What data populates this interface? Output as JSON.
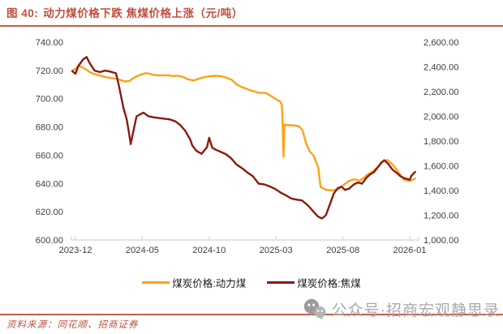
{
  "title": {
    "prefix": "图 40:",
    "text": "动力煤价格下跌 焦煤价格上涨（元/吨）"
  },
  "source": {
    "label": "资料来源：同花顺、招商证券"
  },
  "watermark": {
    "text": "公众号·招商宏观静思录"
  },
  "colors": {
    "accent": "#c14e3e",
    "rule": "#c4604a",
    "axis_text": "#3f3f3f",
    "axis_line": "#d9d9d9",
    "watermark_gray": "#a9a9a9"
  },
  "chart_data": {
    "type": "line",
    "title": "动力煤价格下跌 焦煤价格上涨（元/吨）",
    "unit": "元/吨",
    "grid": false,
    "legend_position": "bottom",
    "x_tick_labels": [
      "2023-12",
      "2024-05",
      "2024-10",
      "2025-03",
      "2025-08",
      "2026-01"
    ],
    "left_axis": {
      "min": 600,
      "max": 740,
      "tick_labels": [
        "740.00",
        "720.00",
        "700.00",
        "680.00",
        "660.00",
        "640.00",
        "620.00",
        "600.00"
      ]
    },
    "right_axis": {
      "min": 1000,
      "max": 2600,
      "tick_labels": [
        "2,600.00",
        "2,400.00",
        "2,200.00",
        "2,000.00",
        "1,800.00",
        "1,600.00",
        "1,400.00",
        "1,200.00",
        "1,000.00"
      ]
    },
    "series": [
      {
        "name": "煤炭价格:动力煤",
        "axis": "left",
        "color": "#FFA018",
        "points": [
          [
            "2023-11-24",
            720
          ],
          [
            "2023-12-01",
            721
          ],
          [
            "2023-12-08",
            723.5
          ],
          [
            "2023-12-15",
            722.5
          ],
          [
            "2023-12-26",
            720.5
          ],
          [
            "2024-01-02",
            719
          ],
          [
            "2024-01-12",
            717.5
          ],
          [
            "2024-01-24",
            716.5
          ],
          [
            "2024-02-05",
            715.5
          ],
          [
            "2024-02-18",
            714.8
          ],
          [
            "2024-03-01",
            714.2
          ],
          [
            "2024-03-12",
            713.2
          ],
          [
            "2024-03-22",
            712.2
          ],
          [
            "2024-04-02",
            712.5
          ],
          [
            "2024-04-14",
            715.2
          ],
          [
            "2024-04-26",
            716.8
          ],
          [
            "2024-05-08",
            718
          ],
          [
            "2024-05-16",
            717.8
          ],
          [
            "2024-05-24",
            717
          ],
          [
            "2024-06-04",
            716.6
          ],
          [
            "2024-06-16",
            716.4
          ],
          [
            "2024-06-28",
            716.6
          ],
          [
            "2024-07-10",
            716
          ],
          [
            "2024-07-22",
            716.2
          ],
          [
            "2024-08-03",
            715.4
          ],
          [
            "2024-08-14",
            713.6
          ],
          [
            "2024-08-27",
            712.9
          ],
          [
            "2024-09-09",
            714.3
          ],
          [
            "2024-09-20",
            715.2
          ],
          [
            "2024-10-03",
            715.9
          ],
          [
            "2024-10-16",
            716.2
          ],
          [
            "2024-10-28",
            715.9
          ],
          [
            "2024-11-09",
            714.9
          ],
          [
            "2024-11-21",
            713.5
          ],
          [
            "2024-12-03",
            710
          ],
          [
            "2024-12-16",
            708
          ],
          [
            "2025-01-03",
            706
          ],
          [
            "2025-01-22",
            704.2
          ],
          [
            "2025-02-08",
            704
          ],
          [
            "2025-02-18",
            702.3
          ],
          [
            "2025-02-28",
            700.2
          ],
          [
            "2025-03-10",
            698
          ],
          [
            "2025-03-14",
            696
          ],
          [
            "2025-03-16",
            682
          ],
          [
            "2025-03-18",
            659
          ],
          [
            "2025-03-20",
            681.5
          ],
          [
            "2025-04-05",
            681.2
          ],
          [
            "2025-04-22",
            680.6
          ],
          [
            "2025-04-30",
            678
          ],
          [
            "2025-05-09",
            668
          ],
          [
            "2025-05-17",
            662.5
          ],
          [
            "2025-05-26",
            659.5
          ],
          [
            "2025-06-01",
            655
          ],
          [
            "2025-06-06",
            651
          ],
          [
            "2025-06-11",
            637.5
          ],
          [
            "2025-06-22",
            635.6
          ],
          [
            "2025-07-05",
            635
          ],
          [
            "2025-07-20",
            635.8
          ],
          [
            "2025-08-02",
            638.8
          ],
          [
            "2025-08-15",
            641.8
          ],
          [
            "2025-08-27",
            643
          ],
          [
            "2025-09-09",
            641.9
          ],
          [
            "2025-09-18",
            644
          ],
          [
            "2025-09-27",
            646.4
          ],
          [
            "2025-10-06",
            648
          ],
          [
            "2025-10-15",
            650.5
          ],
          [
            "2025-10-24",
            653
          ],
          [
            "2025-11-02",
            655.8
          ],
          [
            "2025-11-11",
            656.6
          ],
          [
            "2025-11-21",
            654
          ],
          [
            "2025-11-30",
            650.5
          ],
          [
            "2025-12-09",
            646.5
          ],
          [
            "2025-12-18",
            642.6
          ],
          [
            "2025-12-30",
            641.8
          ],
          [
            "2026-01-06",
            642.3
          ],
          [
            "2026-01-13",
            643.5
          ]
        ]
      },
      {
        "name": "煤炭价格:焦煤",
        "axis": "right",
        "color": "#8B1A0E",
        "points": [
          [
            "2023-11-24",
            2365
          ],
          [
            "2023-12-01",
            2345
          ],
          [
            "2023-12-08",
            2410
          ],
          [
            "2023-12-18",
            2460
          ],
          [
            "2023-12-26",
            2480
          ],
          [
            "2024-01-03",
            2430
          ],
          [
            "2024-01-14",
            2370
          ],
          [
            "2024-01-26",
            2358
          ],
          [
            "2024-02-07",
            2370
          ],
          [
            "2024-02-19",
            2362
          ],
          [
            "2024-03-02",
            2348
          ],
          [
            "2024-03-09",
            2240
          ],
          [
            "2024-03-14",
            2150
          ],
          [
            "2024-03-19",
            2065
          ],
          [
            "2024-03-26",
            1975
          ],
          [
            "2024-04-01",
            1870
          ],
          [
            "2024-04-05",
            1775
          ],
          [
            "2024-04-10",
            1865
          ],
          [
            "2024-04-18",
            2000
          ],
          [
            "2024-04-28",
            2020
          ],
          [
            "2024-05-04",
            2030
          ],
          [
            "2024-05-14",
            2002
          ],
          [
            "2024-05-26",
            1992
          ],
          [
            "2024-06-08",
            1986
          ],
          [
            "2024-06-20",
            1981
          ],
          [
            "2024-07-02",
            1976
          ],
          [
            "2024-07-15",
            1960
          ],
          [
            "2024-07-26",
            1930
          ],
          [
            "2024-08-07",
            1885
          ],
          [
            "2024-08-19",
            1810
          ],
          [
            "2024-08-23",
            1765
          ],
          [
            "2024-09-02",
            1722
          ],
          [
            "2024-09-14",
            1697
          ],
          [
            "2024-09-26",
            1750
          ],
          [
            "2024-10-01",
            1826
          ],
          [
            "2024-10-08",
            1746
          ],
          [
            "2024-10-16",
            1730
          ],
          [
            "2024-10-27",
            1712
          ],
          [
            "2024-11-08",
            1695
          ],
          [
            "2024-11-20",
            1662
          ],
          [
            "2024-12-02",
            1612
          ],
          [
            "2024-12-15",
            1580
          ],
          [
            "2024-12-28",
            1542
          ],
          [
            "2025-01-09",
            1516
          ],
          [
            "2025-01-22",
            1456
          ],
          [
            "2025-02-04",
            1450
          ],
          [
            "2025-02-15",
            1436
          ],
          [
            "2025-02-28",
            1415
          ],
          [
            "2025-03-13",
            1380
          ],
          [
            "2025-03-24",
            1360
          ],
          [
            "2025-04-05",
            1336
          ],
          [
            "2025-04-18",
            1326
          ],
          [
            "2025-04-29",
            1320
          ],
          [
            "2025-05-12",
            1282
          ],
          [
            "2025-05-25",
            1230
          ],
          [
            "2025-06-05",
            1190
          ],
          [
            "2025-06-14",
            1174
          ],
          [
            "2025-06-23",
            1200
          ],
          [
            "2025-07-02",
            1290
          ],
          [
            "2025-07-11",
            1378
          ],
          [
            "2025-07-20",
            1420
          ],
          [
            "2025-07-28",
            1430
          ],
          [
            "2025-08-06",
            1405
          ],
          [
            "2025-08-15",
            1415
          ],
          [
            "2025-08-26",
            1450
          ],
          [
            "2025-09-05",
            1465
          ],
          [
            "2025-09-14",
            1455
          ],
          [
            "2025-09-23",
            1500
          ],
          [
            "2025-10-02",
            1530
          ],
          [
            "2025-10-11",
            1550
          ],
          [
            "2025-10-20",
            1590
          ],
          [
            "2025-10-27",
            1625
          ],
          [
            "2025-11-04",
            1645
          ],
          [
            "2025-11-13",
            1615
          ],
          [
            "2025-11-22",
            1570
          ],
          [
            "2025-12-01",
            1545
          ],
          [
            "2025-12-10",
            1516
          ],
          [
            "2025-12-19",
            1500
          ],
          [
            "2025-12-31",
            1487
          ],
          [
            "2026-01-05",
            1520
          ],
          [
            "2026-01-13",
            1550
          ]
        ]
      }
    ]
  }
}
